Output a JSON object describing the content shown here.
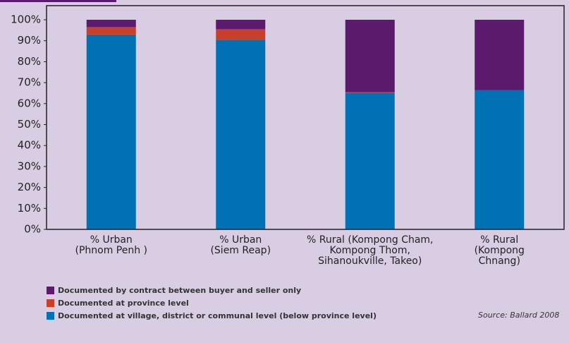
{
  "chart_data": {
    "type": "stacked_bar",
    "categories": [
      "% Urban\n(Phnom Penh )",
      "% Urban\n(Siem Reap)",
      "% Rural (Kompong Cham,\nKompong Thom,\nSihanoukville, Takeo)",
      "% Rural\n(Kompong\nChnang)"
    ],
    "series": [
      {
        "name": "Documented at village, district or communal level (below province level)",
        "color": "#0071b3",
        "values": [
          93,
          90.5,
          65,
          66.5
        ]
      },
      {
        "name": "Documented at province level",
        "color": "#c8402a",
        "values": [
          3.5,
          5,
          0.5,
          0
        ]
      },
      {
        "name": "Documented by contract between buyer and seller only",
        "color": "#5b1a6b",
        "values": [
          3.5,
          4.5,
          34.5,
          33.5
        ]
      }
    ],
    "ylim": [
      0,
      100
    ],
    "yticks": [
      {
        "value": 0,
        "label": "0%"
      },
      {
        "value": 10,
        "label": "10%"
      },
      {
        "value": 20,
        "label": "20%"
      },
      {
        "value": 30,
        "label": "30%"
      },
      {
        "value": 40,
        "label": "40%"
      },
      {
        "value": 50,
        "label": "50%"
      },
      {
        "value": 60,
        "label": "60%"
      },
      {
        "value": 70,
        "label": "70%"
      },
      {
        "value": 80,
        "label": "80%"
      },
      {
        "value": 90,
        "label": "90%"
      },
      {
        "value": 100,
        "label": "100%"
      }
    ],
    "source": "Source: Ballard 2008"
  }
}
